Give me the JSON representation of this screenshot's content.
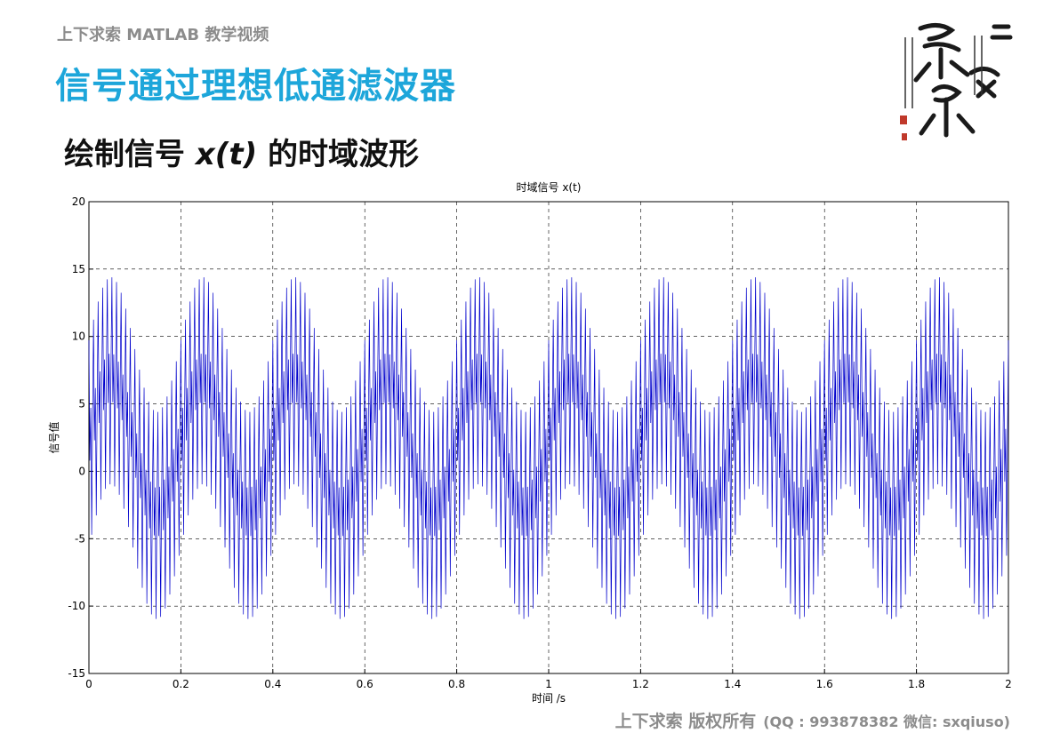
{
  "header": {
    "course": "上下求索 MATLAB 教学视频",
    "title": "信号通过理想低通滤波器"
  },
  "subtitle": {
    "prefix": "绘制信号 ",
    "math": "x(t)",
    "suffix": " 的时域波形"
  },
  "footer": {
    "copyright": "上下求索 版权所有",
    "contact": "(QQ : 993878382   微信: sxqiuso)"
  },
  "colors": {
    "title": "#1da6da",
    "series": "#0000cc",
    "grid": "#000000",
    "footer": "#8c8c8c"
  },
  "decoration": {
    "icon": "calligraphy-seal-icon"
  },
  "chart_data": {
    "type": "line",
    "title": "时域信号 x(t)",
    "xlabel": "时间 /s",
    "ylabel": "信号值",
    "xlim": [
      0,
      2
    ],
    "ylim": [
      -15,
      20
    ],
    "xticks": [
      0,
      0.2,
      0.4,
      0.6,
      0.8,
      1,
      1.2,
      1.4,
      1.6,
      1.8,
      2
    ],
    "xtick_labels": [
      "0",
      "0.2",
      "0.4",
      "0.6",
      "0.8",
      "1",
      "1.2",
      "1.4",
      "1.6",
      "1.8",
      "2"
    ],
    "yticks": [
      -15,
      -10,
      -5,
      0,
      5,
      10,
      15,
      20
    ],
    "ytick_labels": [
      "-15",
      "-10",
      "-5",
      "0",
      "5",
      "10",
      "15",
      "20"
    ],
    "grid": true,
    "grid_style": "dashed",
    "series": [
      {
        "description": "sum of sinusoids sampled densely on [0, 2] s: 5-Hz component with amplitude ~5 plus high-frequency components (~100 Hz and ~200 Hz) with amplitudes ~5 and ~5; y ranges from about -12 to 15",
        "components": [
          {
            "amplitude": 5,
            "freq_hz": 5
          },
          {
            "amplitude": 5,
            "freq_hz": 100
          },
          {
            "amplitude": 5,
            "freq_hz": 200
          }
        ],
        "offset": 2,
        "sample_interval_s": 0.002,
        "y_min": -12,
        "y_max": 15
      }
    ]
  }
}
